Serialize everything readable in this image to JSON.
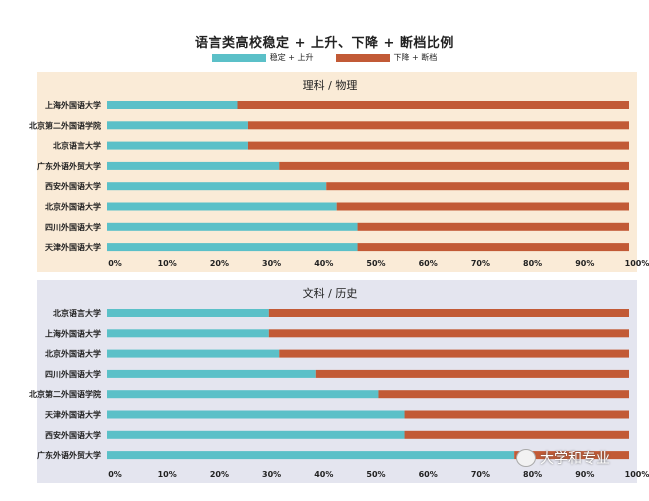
{
  "colors": {
    "stable_up": "#5bc0c8",
    "down_cut": "#c25a36",
    "panel1_bg": "#faebd7",
    "panel2_bg": "#e4e5ef"
  },
  "chart_data": {
    "type": "bar",
    "title": "语言类高校稳定 + 上升、下降 + 断档比例",
    "legend": [
      "稳定 + 上升",
      "下降 + 断档"
    ],
    "legend_position": "top",
    "xlim": [
      0,
      100
    ],
    "x_ticks": [
      "0%",
      "10%",
      "20%",
      "30%",
      "40%",
      "50%",
      "60%",
      "70%",
      "80%",
      "90%",
      "100%"
    ],
    "grid": false,
    "panels": [
      {
        "title": "理科 / 物理",
        "categories": [
          "上海外国语大学",
          "北京第二外国语学院",
          "北京语言大学",
          "广东外语外贸大学",
          "西安外国语大学",
          "北京外国语大学",
          "四川外国语大学",
          "天津外国语大学"
        ],
        "series": [
          {
            "name": "稳定 + 上升",
            "values": [
              25,
              27,
              27,
              33,
              42,
              44,
              48,
              48
            ]
          },
          {
            "name": "下降 + 断档",
            "values": [
              75,
              73,
              73,
              67,
              58,
              56,
              52,
              52
            ]
          }
        ]
      },
      {
        "title": "文科 / 历史",
        "categories": [
          "北京语言大学",
          "上海外国语大学",
          "北京外国语大学",
          "四川外国语大学",
          "北京第二外国语学院",
          "天津外国语大学",
          "西安外国语大学",
          "广东外语外贸大学"
        ],
        "series": [
          {
            "name": "稳定 + 上升",
            "values": [
              31,
              31,
              33,
              40,
              52,
              57,
              57,
              78
            ]
          },
          {
            "name": "下降 + 断档",
            "values": [
              69,
              69,
              67,
              60,
              48,
              43,
              43,
              22
            ]
          }
        ]
      }
    ]
  },
  "watermark": "大学和专业"
}
